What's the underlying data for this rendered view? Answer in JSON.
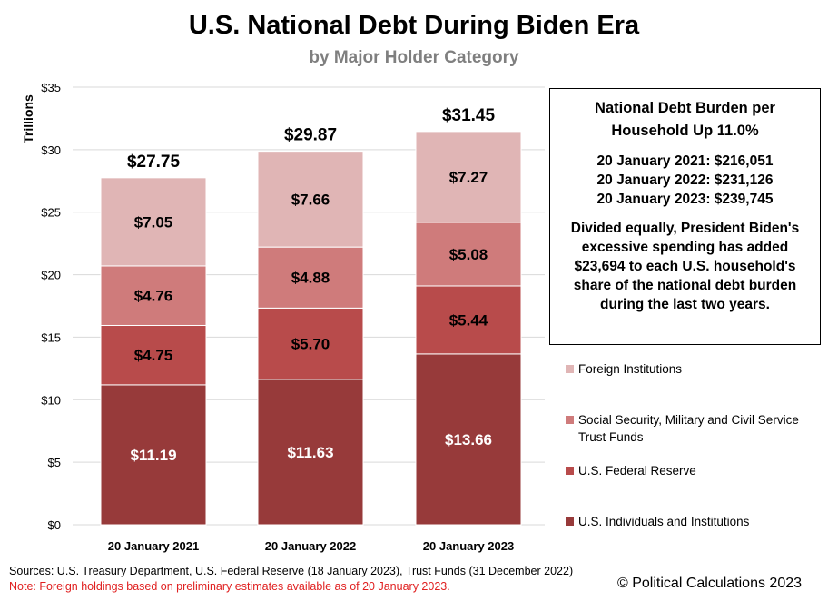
{
  "title": "U.S. National Debt During Biden Era",
  "subtitle": "by Major Holder Category",
  "chart_data": {
    "type": "bar",
    "stacked": true,
    "ylabel": "Trillions",
    "ylim": [
      0,
      35
    ],
    "yticks": [
      "$0",
      "$5",
      "$10",
      "$15",
      "$20",
      "$25",
      "$30",
      "$35"
    ],
    "ytick_values": [
      0,
      5,
      10,
      15,
      20,
      25,
      30,
      35
    ],
    "categories": [
      "20 January 2021",
      "20 January 2022",
      "20 January 2023"
    ],
    "series": [
      {
        "name": "U.S. Individuals and Institutions",
        "color": "#973a3a",
        "values": [
          11.19,
          11.63,
          13.66
        ],
        "labels": [
          "$11.19",
          "$11.63",
          "$13.66"
        ],
        "label_color": "#ffffff"
      },
      {
        "name": "U.S. Federal Reserve",
        "color": "#b84b4b",
        "values": [
          4.75,
          5.7,
          5.44
        ],
        "labels": [
          "$4.75",
          "$5.70",
          "$5.44"
        ],
        "label_color": "#000000"
      },
      {
        "name": "Social Security, Military and Civil Service Trust Funds",
        "color": "#cf7b7b",
        "values": [
          4.76,
          4.88,
          5.08
        ],
        "labels": [
          "$4.76",
          "$4.88",
          "$5.08"
        ],
        "label_color": "#000000"
      },
      {
        "name": "Foreign Institutions",
        "color": "#e0b5b5",
        "values": [
          7.05,
          7.66,
          7.27
        ],
        "labels": [
          "$7.05",
          "$7.66",
          "$7.27"
        ],
        "label_color": "#000000"
      }
    ],
    "totals": [
      27.75,
      29.87,
      31.45
    ],
    "total_labels": [
      "$27.75",
      "$29.87",
      "$31.45"
    ],
    "grid": true,
    "legend_position": "right"
  },
  "info_box": {
    "title": "National  Debt Burden per Household  Up 11.0%",
    "lines": [
      "20 January 2021: $216,051",
      "20 January 2022: $231,126",
      "20 January 2023: $239,745"
    ],
    "body": "Divided equally, President Biden's excessive spending has added $23,694 to each U.S. household's share of the national debt burden during the last two years."
  },
  "legend": [
    {
      "name": "Foreign Institutions",
      "color": "#e0b5b5"
    },
    {
      "name": "Social Security, Military and Civil Service Trust Funds",
      "color": "#cf7b7b"
    },
    {
      "name": "U.S. Federal Reserve",
      "color": "#b84b4b"
    },
    {
      "name": "U.S. Individuals and Institutions",
      "color": "#973a3a"
    }
  ],
  "footer": {
    "sources": "Sources: U.S. Treasury Department, U.S. Federal Reserve (18 January 2023),  Trust Funds (31 December 2022)",
    "note": "Note: Foreign holdings based on preliminary estimates available as of 20 January 2023.",
    "copyright": "© Political Calculations 2023"
  }
}
